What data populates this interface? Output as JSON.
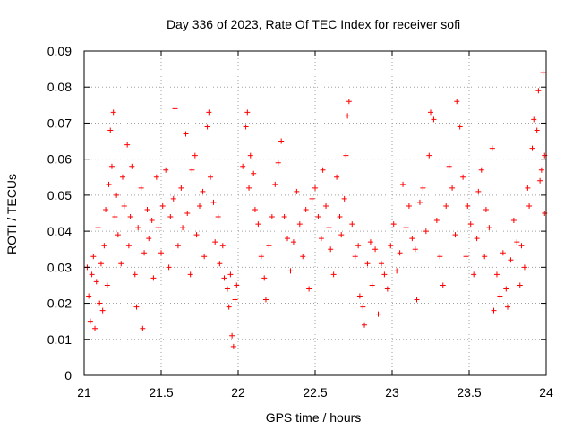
{
  "chart_data": {
    "type": "scatter",
    "title": "Day 336 of 2023, Rate Of TEC Index for receiver sofi",
    "xlabel": "GPS time / hours",
    "ylabel": "ROTI / TECUs",
    "xlim": [
      21,
      24
    ],
    "ylim": [
      0,
      0.09
    ],
    "x_ticks": [
      21,
      21.5,
      22,
      22.5,
      23,
      23.5,
      24
    ],
    "x_tick_labels": [
      "21",
      "21.5",
      "22",
      "22.5",
      "23",
      "23.5",
      "24"
    ],
    "y_ticks": [
      0,
      0.01,
      0.02,
      0.03,
      0.04,
      0.05,
      0.06,
      0.07,
      0.08,
      0.09
    ],
    "y_tick_labels": [
      "0",
      "0.01",
      "0.02",
      "0.03",
      "0.04",
      "0.05",
      "0.06",
      "0.07",
      "0.08",
      "0.09"
    ],
    "grid": true,
    "marker": "+",
    "color": "#ff0000",
    "series": [
      {
        "name": "ROTI",
        "points": [
          [
            21.02,
            0.03
          ],
          [
            21.03,
            0.022
          ],
          [
            21.04,
            0.015
          ],
          [
            21.05,
            0.028
          ],
          [
            21.06,
            0.033
          ],
          [
            21.07,
            0.013
          ],
          [
            21.08,
            0.026
          ],
          [
            21.09,
            0.041
          ],
          [
            21.1,
            0.02
          ],
          [
            21.11,
            0.031
          ],
          [
            21.12,
            0.018
          ],
          [
            21.13,
            0.036
          ],
          [
            21.14,
            0.046
          ],
          [
            21.15,
            0.025
          ],
          [
            21.16,
            0.053
          ],
          [
            21.17,
            0.068
          ],
          [
            21.18,
            0.058
          ],
          [
            21.19,
            0.073
          ],
          [
            21.2,
            0.044
          ],
          [
            21.21,
            0.05
          ],
          [
            21.22,
            0.039
          ],
          [
            21.24,
            0.031
          ],
          [
            21.25,
            0.055
          ],
          [
            21.26,
            0.047
          ],
          [
            21.28,
            0.064
          ],
          [
            21.29,
            0.036
          ],
          [
            21.3,
            0.044
          ],
          [
            21.31,
            0.058
          ],
          [
            21.33,
            0.028
          ],
          [
            21.34,
            0.019
          ],
          [
            21.35,
            0.041
          ],
          [
            21.37,
            0.052
          ],
          [
            21.38,
            0.013
          ],
          [
            21.39,
            0.034
          ],
          [
            21.41,
            0.046
          ],
          [
            21.42,
            0.038
          ],
          [
            21.44,
            0.043
          ],
          [
            21.45,
            0.027
          ],
          [
            21.47,
            0.055
          ],
          [
            21.48,
            0.041
          ],
          [
            21.5,
            0.034
          ],
          [
            21.51,
            0.047
          ],
          [
            21.53,
            0.057
          ],
          [
            21.55,
            0.03
          ],
          [
            21.56,
            0.044
          ],
          [
            21.58,
            0.049
          ],
          [
            21.59,
            0.074
          ],
          [
            21.61,
            0.036
          ],
          [
            21.63,
            0.052
          ],
          [
            21.64,
            0.041
          ],
          [
            21.66,
            0.067
          ],
          [
            21.67,
            0.045
          ],
          [
            21.69,
            0.028
          ],
          [
            21.7,
            0.057
          ],
          [
            21.72,
            0.061
          ],
          [
            21.73,
            0.039
          ],
          [
            21.75,
            0.047
          ],
          [
            21.77,
            0.051
          ],
          [
            21.78,
            0.033
          ],
          [
            21.8,
            0.069
          ],
          [
            21.81,
            0.073
          ],
          [
            21.82,
            0.055
          ],
          [
            21.84,
            0.048
          ],
          [
            21.85,
            0.037
          ],
          [
            21.87,
            0.044
          ],
          [
            21.88,
            0.031
          ],
          [
            21.9,
            0.036
          ],
          [
            21.91,
            0.027
          ],
          [
            21.93,
            0.024
          ],
          [
            21.94,
            0.019
          ],
          [
            21.95,
            0.028
          ],
          [
            21.96,
            0.011
          ],
          [
            21.97,
            0.008
          ],
          [
            21.98,
            0.021
          ],
          [
            21.99,
            0.025
          ],
          [
            22.03,
            0.058
          ],
          [
            22.05,
            0.069
          ],
          [
            22.06,
            0.073
          ],
          [
            22.07,
            0.052
          ],
          [
            22.08,
            0.061
          ],
          [
            22.1,
            0.056
          ],
          [
            22.11,
            0.046
          ],
          [
            22.13,
            0.042
          ],
          [
            22.15,
            0.033
          ],
          [
            22.17,
            0.027
          ],
          [
            22.18,
            0.021
          ],
          [
            22.2,
            0.036
          ],
          [
            22.22,
            0.044
          ],
          [
            22.24,
            0.053
          ],
          [
            22.26,
            0.059
          ],
          [
            22.28,
            0.065
          ],
          [
            22.3,
            0.044
          ],
          [
            22.32,
            0.038
          ],
          [
            22.34,
            0.029
          ],
          [
            22.36,
            0.037
          ],
          [
            22.38,
            0.051
          ],
          [
            22.4,
            0.042
          ],
          [
            22.42,
            0.033
          ],
          [
            22.44,
            0.046
          ],
          [
            22.46,
            0.024
          ],
          [
            22.48,
            0.049
          ],
          [
            22.5,
            0.052
          ],
          [
            22.52,
            0.044
          ],
          [
            22.54,
            0.038
          ],
          [
            22.55,
            0.057
          ],
          [
            22.57,
            0.047
          ],
          [
            22.59,
            0.041
          ],
          [
            22.6,
            0.035
          ],
          [
            22.62,
            0.028
          ],
          [
            22.64,
            0.055
          ],
          [
            22.66,
            0.044
          ],
          [
            22.67,
            0.039
          ],
          [
            22.69,
            0.049
          ],
          [
            22.7,
            0.061
          ],
          [
            22.71,
            0.072
          ],
          [
            22.72,
            0.076
          ],
          [
            22.74,
            0.042
          ],
          [
            22.76,
            0.033
          ],
          [
            22.78,
            0.036
          ],
          [
            22.79,
            0.022
          ],
          [
            22.81,
            0.019
          ],
          [
            22.82,
            0.014
          ],
          [
            22.84,
            0.031
          ],
          [
            22.86,
            0.037
          ],
          [
            22.87,
            0.025
          ],
          [
            22.89,
            0.035
          ],
          [
            22.91,
            0.017
          ],
          [
            22.93,
            0.031
          ],
          [
            22.95,
            0.028
          ],
          [
            22.97,
            0.024
          ],
          [
            22.99,
            0.036
          ],
          [
            23.01,
            0.042
          ],
          [
            23.03,
            0.029
          ],
          [
            23.05,
            0.034
          ],
          [
            23.07,
            0.053
          ],
          [
            23.09,
            0.041
          ],
          [
            23.11,
            0.047
          ],
          [
            23.13,
            0.038
          ],
          [
            23.15,
            0.035
          ],
          [
            23.16,
            0.021
          ],
          [
            23.18,
            0.048
          ],
          [
            23.2,
            0.052
          ],
          [
            23.22,
            0.04
          ],
          [
            23.24,
            0.061
          ],
          [
            23.25,
            0.073
          ],
          [
            23.27,
            0.071
          ],
          [
            23.29,
            0.043
          ],
          [
            23.31,
            0.033
          ],
          [
            23.33,
            0.025
          ],
          [
            23.35,
            0.047
          ],
          [
            23.37,
            0.058
          ],
          [
            23.39,
            0.052
          ],
          [
            23.41,
            0.039
          ],
          [
            23.42,
            0.076
          ],
          [
            23.44,
            0.069
          ],
          [
            23.46,
            0.055
          ],
          [
            23.48,
            0.033
          ],
          [
            23.49,
            0.047
          ],
          [
            23.51,
            0.042
          ],
          [
            23.53,
            0.028
          ],
          [
            23.55,
            0.038
          ],
          [
            23.56,
            0.051
          ],
          [
            23.58,
            0.057
          ],
          [
            23.6,
            0.033
          ],
          [
            23.61,
            0.046
          ],
          [
            23.63,
            0.041
          ],
          [
            23.65,
            0.063
          ],
          [
            23.66,
            0.018
          ],
          [
            23.68,
            0.028
          ],
          [
            23.7,
            0.022
          ],
          [
            23.72,
            0.034
          ],
          [
            23.74,
            0.024
          ],
          [
            23.75,
            0.019
          ],
          [
            23.77,
            0.032
          ],
          [
            23.79,
            0.043
          ],
          [
            23.81,
            0.037
          ],
          [
            23.83,
            0.025
          ],
          [
            23.84,
            0.036
          ],
          [
            23.86,
            0.03
          ],
          [
            23.88,
            0.052
          ],
          [
            23.89,
            0.047
          ],
          [
            23.91,
            0.063
          ],
          [
            23.92,
            0.071
          ],
          [
            23.94,
            0.068
          ],
          [
            23.95,
            0.079
          ],
          [
            23.96,
            0.054
          ],
          [
            23.97,
            0.057
          ],
          [
            23.98,
            0.084
          ],
          [
            23.99,
            0.061
          ],
          [
            23.99,
            0.045
          ]
        ]
      }
    ]
  }
}
